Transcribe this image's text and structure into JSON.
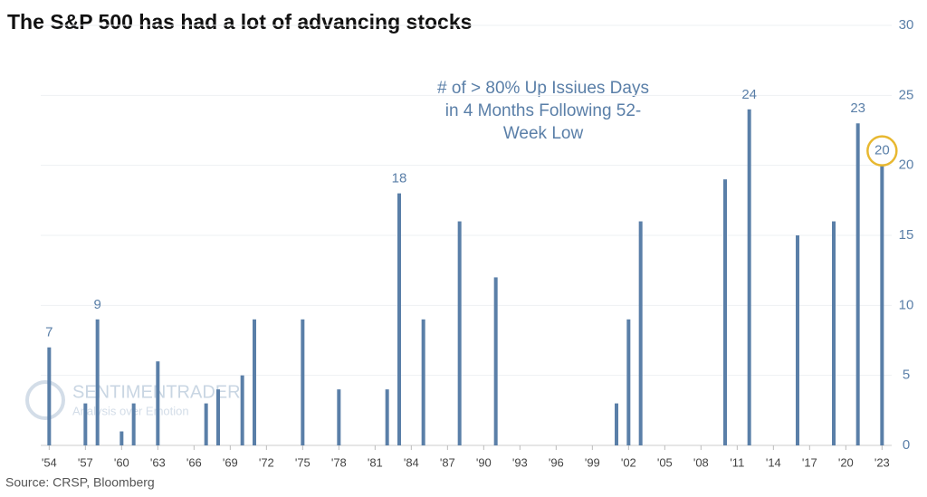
{
  "chart_data": {
    "type": "bar",
    "title": "The S&P 500 has had a lot of advancing stocks",
    "annotation": [
      "# of > 80% Up Issiues Days",
      "in 4 Months Following 52-",
      "Week Low"
    ],
    "source": "Source: CRSP, Bloomberg",
    "watermark": [
      "SENTIMENTRADER",
      "Analysis over Emotion"
    ],
    "x": [
      1954,
      1957,
      1958,
      1960,
      1961,
      1963,
      1967,
      1968,
      1970,
      1971,
      1975,
      1978,
      1982,
      1983,
      1985,
      1988,
      1991,
      2001,
      2002,
      2003,
      2010,
      2012,
      2016,
      2019,
      2021,
      2023
    ],
    "values": [
      7,
      3,
      9,
      1,
      3,
      6,
      3,
      4,
      5,
      9,
      9,
      4,
      4,
      18,
      9,
      16,
      12,
      3,
      9,
      16,
      19,
      24,
      15,
      16,
      23,
      20
    ],
    "value_labels": [
      "7",
      null,
      "9",
      null,
      null,
      null,
      null,
      null,
      null,
      null,
      null,
      null,
      null,
      "18",
      null,
      null,
      null,
      null,
      null,
      null,
      null,
      "24",
      null,
      null,
      "23",
      "20"
    ],
    "color": "#5a7fa8",
    "xlim": [
      1953.3,
      2023.8
    ],
    "xticks": [
      {
        "value": 1954,
        "label": "'54"
      },
      {
        "value": 1957,
        "label": "'57"
      },
      {
        "value": 1960,
        "label": "'60"
      },
      {
        "value": 1963,
        "label": "'63"
      },
      {
        "value": 1966,
        "label": "'66"
      },
      {
        "value": 1969,
        "label": "'69"
      },
      {
        "value": 1972,
        "label": "'72"
      },
      {
        "value": 1975,
        "label": "'75"
      },
      {
        "value": 1978,
        "label": "'78"
      },
      {
        "value": 1981,
        "label": "'81"
      },
      {
        "value": 1984,
        "label": "'84"
      },
      {
        "value": 1987,
        "label": "'87"
      },
      {
        "value": 1990,
        "label": "'90"
      },
      {
        "value": 1993,
        "label": "'93"
      },
      {
        "value": 1996,
        "label": "'96"
      },
      {
        "value": 1999,
        "label": "'99"
      },
      {
        "value": 2002,
        "label": "'02"
      },
      {
        "value": 2005,
        "label": "'05"
      },
      {
        "value": 2008,
        "label": "'08"
      },
      {
        "value": 2011,
        "label": "'11"
      },
      {
        "value": 2014,
        "label": "'14"
      },
      {
        "value": 2017,
        "label": "'17"
      },
      {
        "value": 2020,
        "label": "'20"
      },
      {
        "value": 2023,
        "label": "'23"
      }
    ],
    "ylim": [
      0,
      30
    ],
    "yticks": [
      0,
      5,
      10,
      15,
      20,
      25,
      30
    ],
    "grid": true
  }
}
